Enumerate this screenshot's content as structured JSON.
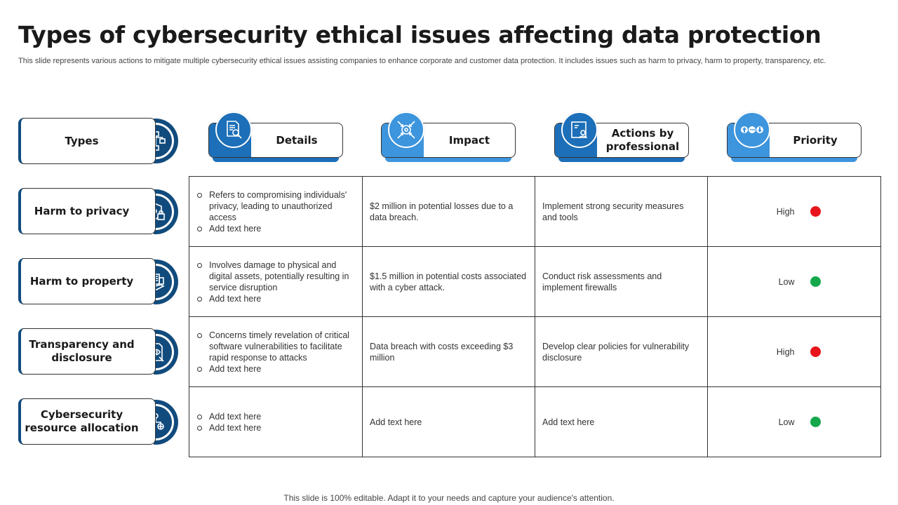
{
  "title": "Types of cybersecurity ethical issues affecting data protection",
  "subtitle": "This slide represents various actions to mitigate multiple cybersecurity ethical issues assisting companies to enhance corporate and customer data protection. It includes issues such as harm to privacy, harm to property, transparency, etc.",
  "footer": "This slide is 100% editable. Adapt it to your needs and capture your audience's attention.",
  "colors": {
    "navy": "#114b7d",
    "blue": "#1c6fb8",
    "light_blue": "#3d95dd",
    "high": "#e8141b",
    "low": "#14a84a"
  },
  "types_header": {
    "label": "Types",
    "icon": "hierarchy-icon"
  },
  "headers": [
    {
      "label": "Details",
      "icon": "document-search-icon"
    },
    {
      "label": "Impact",
      "icon": "target-arrows-icon"
    },
    {
      "label": "Actions by professional",
      "icon": "id-card-icon"
    },
    {
      "label": "Priority",
      "icon": "priority-arrows-icon"
    }
  ],
  "rows": [
    {
      "type": "Harm to privacy",
      "icon": "shield-lock-icon",
      "details": [
        "Refers to compromising individuals' privacy, leading to unauthorized access",
        "Add text here"
      ],
      "impact": "$2 million in potential losses due to a data breach.",
      "action": "Implement strong security measures and tools",
      "priority": "High",
      "priority_color": "#e8141b"
    },
    {
      "type": "Harm to property",
      "icon": "hand-building-icon",
      "details": [
        "Involves damage to physical and digital assets, potentially resulting in service disruption",
        "Add text here"
      ],
      "impact": "$1.5 million in potential costs associated with a cyber attack.",
      "action": "Conduct risk assessments and implement firewalls",
      "priority": "Low",
      "priority_color": "#14a84a"
    },
    {
      "type": "Transparency and disclosure",
      "icon": "eye-document-icon",
      "details": [
        "Concerns timely revelation of critical software vulnerabilities to facilitate rapid response to attacks",
        "Add text here"
      ],
      "impact": "Data breach with costs exceeding $3 million",
      "action": "Develop clear policies for vulnerability disclosure",
      "priority": "High",
      "priority_color": "#e8141b"
    },
    {
      "type": "Cybersecurity resource allocation",
      "icon": "resource-network-icon",
      "details": [
        "Add text here",
        "Add text here"
      ],
      "impact": "Add text here",
      "action": "Add text here",
      "priority": "Low",
      "priority_color": "#14a84a"
    }
  ]
}
